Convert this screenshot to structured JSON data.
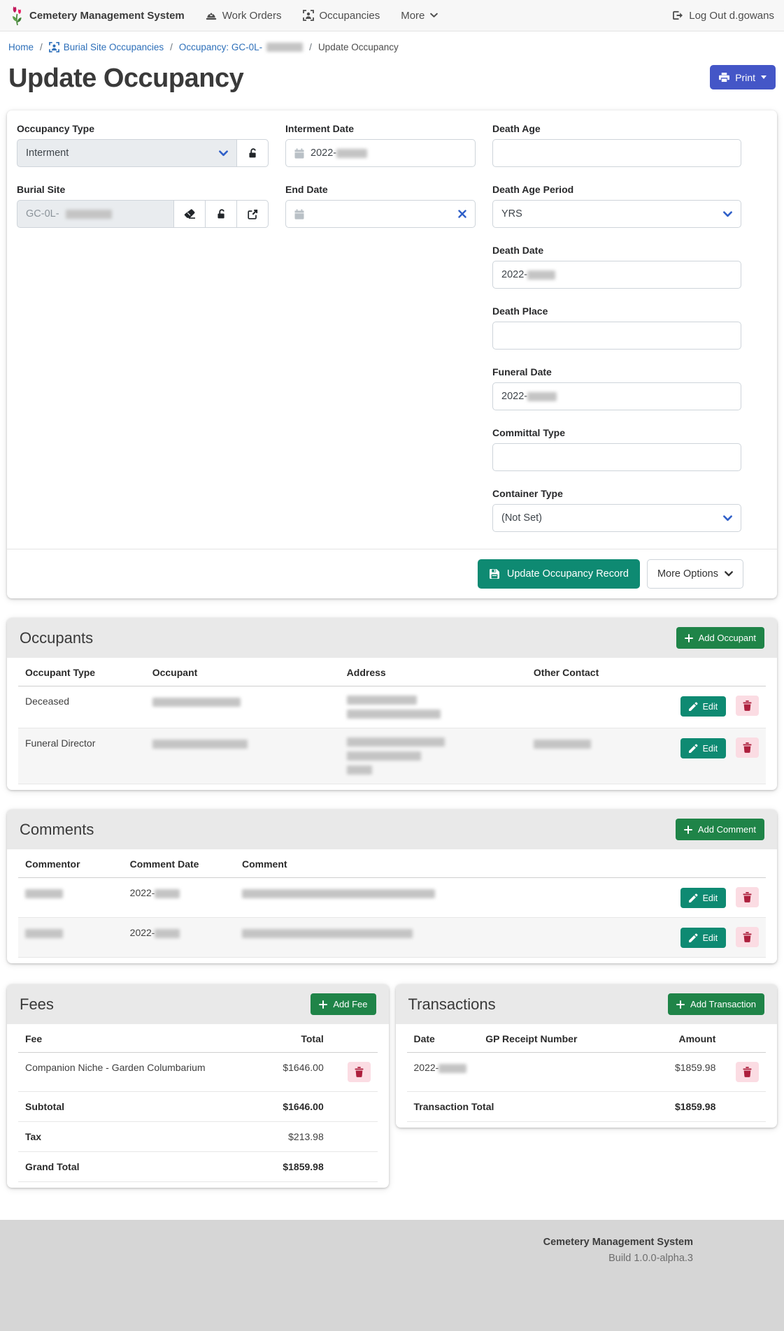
{
  "navbar": {
    "brand": "Cemetery Management System",
    "work_orders": "Work Orders",
    "occupancies": "Occupancies",
    "more": "More",
    "logout": "Log Out d.gowans"
  },
  "breadcrumb": {
    "home": "Home",
    "burial_site_occupancies": "Burial Site Occupancies",
    "occupancy_prefix": "Occupancy: GC-0L-",
    "occupancy_redacted_w": 52,
    "current": "Update Occupancy"
  },
  "header": {
    "title": "Update Occupancy",
    "print": "Print"
  },
  "form": {
    "occupancy_type": {
      "label": "Occupancy Type",
      "value": "Interment"
    },
    "burial_site": {
      "label": "Burial Site",
      "value_prefix": "GC-0L-",
      "redacted_w": 66
    },
    "interment_date": {
      "label": "Interment Date",
      "value_prefix": "2022-",
      "redacted_w": 44
    },
    "end_date": {
      "label": "End Date",
      "value": ""
    },
    "death_age": {
      "label": "Death Age",
      "value": ""
    },
    "death_age_period": {
      "label": "Death Age Period",
      "value": "YRS"
    },
    "death_date": {
      "label": "Death Date",
      "value_prefix": "2022-",
      "redacted_w": 40
    },
    "death_place": {
      "label": "Death Place",
      "value": ""
    },
    "funeral_date": {
      "label": "Funeral Date",
      "value_prefix": "2022-",
      "redacted_w": 42
    },
    "committal_type": {
      "label": "Committal Type",
      "value": ""
    },
    "container_type": {
      "label": "Container Type",
      "value": "(Not Set)"
    },
    "submit": "Update Occupancy Record",
    "more_options": "More Options"
  },
  "occupants": {
    "title": "Occupants",
    "add_button": "Add Occupant",
    "edit_button": "Edit",
    "headers": [
      "Occupant Type",
      "Occupant",
      "Address",
      "Other Contact"
    ],
    "rows": [
      {
        "type": "Deceased",
        "occupant_redacted_w": 126,
        "address_redacted_lines": [
          100,
          134
        ],
        "other_contact_redacted_w": 0
      },
      {
        "type": "Funeral Director",
        "occupant_redacted_w": 136,
        "address_redacted_lines": [
          140,
          106,
          36
        ],
        "other_contact_redacted_w": 82
      }
    ]
  },
  "comments": {
    "title": "Comments",
    "add_button": "Add Comment",
    "edit_button": "Edit",
    "headers": [
      "Commentor",
      "Comment Date",
      "Comment"
    ],
    "rows": [
      {
        "commentor_redacted_w": 54,
        "date_prefix": "2022-",
        "date_redacted_w": 36,
        "comment_redacted_w": 276
      },
      {
        "commentor_redacted_w": 54,
        "date_prefix": "2022-",
        "date_redacted_w": 36,
        "comment_redacted_w": 244
      }
    ]
  },
  "fees": {
    "title": "Fees",
    "add_button": "Add Fee",
    "headers": [
      "Fee",
      "Total"
    ],
    "rows": [
      {
        "fee": "Companion Niche - Garden Columbarium",
        "total": "$1646.00"
      }
    ],
    "subtotal_label": "Subtotal",
    "subtotal": "$1646.00",
    "tax_label": "Tax",
    "tax": "$213.98",
    "grand_total_label": "Grand Total",
    "grand_total": "$1859.98"
  },
  "transactions": {
    "title": "Transactions",
    "add_button": "Add Transaction",
    "headers": [
      "Date",
      "GP Receipt Number",
      "Amount"
    ],
    "rows": [
      {
        "date_prefix": "2022-",
        "date_redacted_w": 40,
        "gp_receipt": "",
        "amount": "$1859.98"
      }
    ],
    "total_label": "Transaction Total",
    "total": "$1859.98"
  },
  "footer": {
    "brand": "Cemetery Management System",
    "build": "Build 1.0.0-alpha.3"
  },
  "colors": {
    "primary_indigo": "#4456c7",
    "teal": "#0e8a72",
    "green": "#1f8448",
    "link_blue": "#2d6fb9",
    "control_chevron_blue": "#2f5fc8",
    "danger_red": "#ad1f3d",
    "danger_pink_bg": "#fbdce3",
    "section_header_bg": "#e9e9e9",
    "footer_bg": "#d6d6d6",
    "disabled_input_bg": "#e9ecef"
  }
}
